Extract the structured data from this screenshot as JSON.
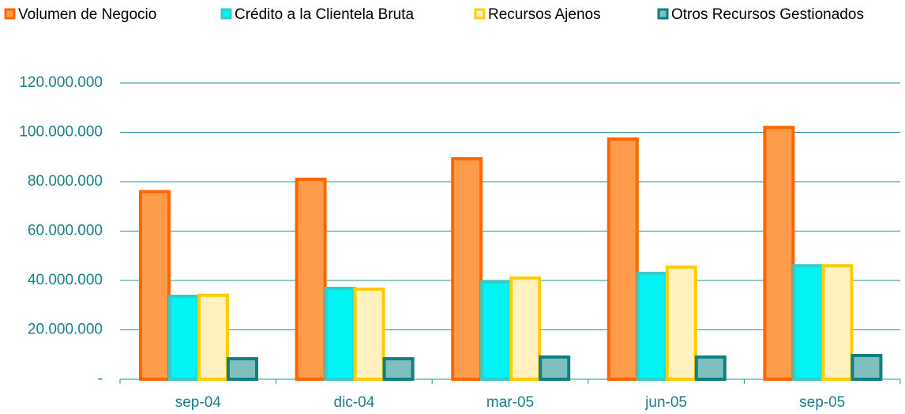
{
  "chart_data": {
    "type": "bar",
    "categories": [
      "sep-04",
      "dic-04",
      "mar-05",
      "jun-05",
      "sep-05"
    ],
    "series": [
      {
        "name": "Volumen de Negocio",
        "color": "#ff9c4c",
        "border_color": "#ff6600",
        "values": [
          76000000,
          81000000,
          89300000,
          97300000,
          102000000
        ]
      },
      {
        "name": "Crédito a la Clientela Bruta",
        "color": "#00f4f4",
        "border_color": "#33cccc",
        "values": [
          33600000,
          36800000,
          39400000,
          42900000,
          46000000
        ]
      },
      {
        "name": "Recursos Ajenos",
        "color": "#fff2c0",
        "border_color": "#ffcc00",
        "values": [
          34000000,
          36500000,
          41000000,
          45400000,
          46000000
        ]
      },
      {
        "name": "Otros Recursos Gestionados",
        "color": "#80bfbf",
        "border_color": "#0f7f7f",
        "values": [
          8300000,
          8300000,
          9000000,
          9000000,
          9600000
        ]
      }
    ],
    "ylim": [
      0,
      120000000
    ],
    "yticks": [
      {
        "value": 0,
        "label": "-"
      },
      {
        "value": 20000000,
        "label": "20.000.000"
      },
      {
        "value": 40000000,
        "label": "40.000.000"
      },
      {
        "value": 60000000,
        "label": "60.000.000"
      },
      {
        "value": 80000000,
        "label": "80.000.000"
      },
      {
        "value": 100000000,
        "label": "100.000.000"
      },
      {
        "value": 120000000,
        "label": "120.000.000"
      }
    ],
    "grid": true
  }
}
